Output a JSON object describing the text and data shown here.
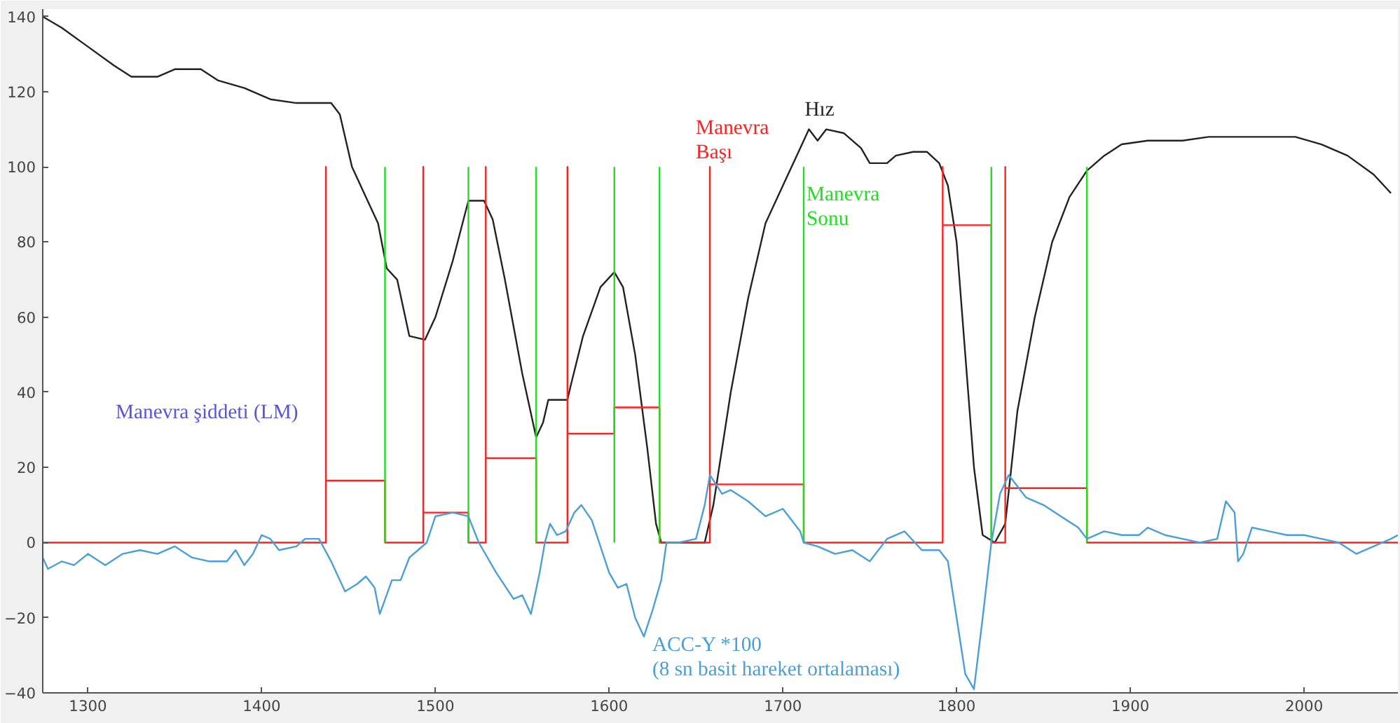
{
  "chart_data": {
    "type": "line",
    "xlim": [
      1274,
      2054
    ],
    "ylim": [
      -40,
      142
    ],
    "xticks": [
      1300,
      1400,
      1500,
      1600,
      1700,
      1800,
      1900,
      2000
    ],
    "yticks": [
      -40,
      -20,
      0,
      20,
      40,
      60,
      80,
      100,
      120,
      140
    ],
    "grid": false,
    "series": [
      {
        "color": "#222222",
        "x": [
          1274,
          1285,
          1300,
          1315,
          1325,
          1340,
          1350,
          1365,
          1375,
          1390,
          1405,
          1420,
          1440,
          1445,
          1452,
          1460,
          1467,
          1472,
          1478,
          1485,
          1494,
          1500,
          1510,
          1519,
          1528,
          1533,
          1540,
          1550,
          1558,
          1562,
          1565,
          1576,
          1578,
          1585,
          1595,
          1603,
          1608,
          1615,
          1622,
          1627,
          1630,
          1655,
          1660,
          1670,
          1680,
          1690,
          1700,
          1710,
          1715,
          1720,
          1725,
          1735,
          1745,
          1750,
          1760,
          1765,
          1775,
          1783,
          1790,
          1795,
          1800,
          1805,
          1810,
          1815,
          1822,
          1828,
          1835,
          1845,
          1855,
          1865,
          1875,
          1885,
          1895,
          1910,
          1930,
          1945,
          1960,
          1980,
          1995,
          2010,
          2025,
          2040,
          2050
        ],
        "values": [
          140,
          137,
          132,
          127,
          124,
          124,
          126,
          126,
          123,
          121,
          118,
          117,
          117,
          114,
          100,
          92,
          85,
          73,
          70,
          55,
          54,
          60,
          75,
          91,
          91,
          86,
          70,
          45,
          28,
          32,
          38,
          38,
          42,
          55,
          68,
          72,
          68,
          50,
          25,
          5,
          0,
          0,
          10,
          40,
          65,
          85,
          95,
          105,
          110,
          107,
          110,
          109,
          105,
          101,
          101,
          103,
          104,
          104,
          101,
          95,
          80,
          50,
          20,
          2,
          0,
          5,
          35,
          60,
          80,
          92,
          99,
          103,
          106,
          107,
          107,
          108,
          108,
          108,
          108,
          106,
          103,
          98,
          93
        ]
      },
      {
        "color": "#ff2020",
        "x": [
          1274,
          1437,
          1437,
          1437,
          1471,
          1471,
          1493,
          1493,
          1493,
          1519,
          1519,
          1529,
          1529,
          1529,
          1558,
          1558,
          1576,
          1576,
          1576,
          1603,
          1603,
          1629,
          1629,
          1658,
          1658,
          1658,
          1712,
          1712,
          1792,
          1792,
          1792,
          1820,
          1820,
          1828,
          1828,
          1828,
          1875,
          1875,
          2054
        ],
        "values": [
          0,
          0,
          100,
          16.5,
          16.5,
          0,
          0,
          100,
          8,
          8,
          0,
          0,
          100,
          22.5,
          22.5,
          0,
          0,
          100,
          29,
          29,
          36,
          36,
          0,
          0,
          100,
          15.5,
          15.5,
          0,
          0,
          100,
          84.5,
          84.5,
          0,
          0,
          100,
          14.5,
          14.5,
          0,
          0
        ]
      },
      {
        "color": "#22dd22",
        "x": [
          1471,
          1471
        ],
        "values": [
          0,
          100
        ]
      },
      {
        "color": "#22dd22",
        "x": [
          1519,
          1519
        ],
        "values": [
          0,
          100
        ]
      },
      {
        "color": "#22dd22",
        "x": [
          1558,
          1558
        ],
        "values": [
          0,
          100
        ]
      },
      {
        "color": "#22dd22",
        "x": [
          1603,
          1603
        ],
        "values": [
          0,
          100
        ]
      },
      {
        "color": "#22dd22",
        "x": [
          1629,
          1629
        ],
        "values": [
          0,
          100
        ]
      },
      {
        "color": "#22dd22",
        "x": [
          1712,
          1712
        ],
        "values": [
          0,
          100
        ]
      },
      {
        "color": "#22dd22",
        "x": [
          1820,
          1820
        ],
        "values": [
          0,
          100
        ]
      },
      {
        "color": "#22dd22",
        "x": [
          1875,
          1875
        ],
        "values": [
          0,
          100
        ]
      },
      {
        "color": "#4a9fd8",
        "x": [
          1274,
          1277,
          1285,
          1292,
          1300,
          1310,
          1320,
          1330,
          1340,
          1350,
          1360,
          1370,
          1380,
          1385,
          1390,
          1395,
          1400,
          1405,
          1410,
          1420,
          1425,
          1433,
          1440,
          1448,
          1455,
          1460,
          1465,
          1468,
          1475,
          1480,
          1485,
          1490,
          1495,
          1500,
          1510,
          1519,
          1525,
          1535,
          1545,
          1550,
          1555,
          1560,
          1563,
          1566,
          1570,
          1575,
          1580,
          1584,
          1590,
          1595,
          1600,
          1605,
          1610,
          1615,
          1620,
          1625,
          1630,
          1633,
          1640,
          1650,
          1655,
          1658,
          1665,
          1670,
          1680,
          1690,
          1700,
          1710,
          1712,
          1720,
          1730,
          1740,
          1750,
          1760,
          1770,
          1780,
          1790,
          1795,
          1800,
          1805,
          1810,
          1815,
          1820,
          1825,
          1830,
          1840,
          1850,
          1860,
          1870,
          1875,
          1885,
          1895,
          1905,
          1910,
          1920,
          1930,
          1940,
          1950,
          1955,
          1960,
          1962,
          1965,
          1970,
          1980,
          1990,
          2000,
          2010,
          2020,
          2030,
          2040,
          2050,
          2054
        ],
        "values": [
          -4,
          -7,
          -5,
          -6,
          -3,
          -6,
          -3,
          -2,
          -3,
          -1,
          -4,
          -5,
          -5,
          -2,
          -6,
          -3,
          2,
          1,
          -2,
          -1,
          1,
          1,
          -5,
          -13,
          -11,
          -9,
          -12,
          -19,
          -10,
          -10,
          -4,
          -2,
          0,
          7,
          8,
          7,
          0,
          -8,
          -15,
          -14,
          -19,
          -8,
          0,
          5,
          2,
          3,
          8,
          10,
          6,
          -1,
          -8,
          -12,
          -11,
          -20,
          -25,
          -18,
          -10,
          0,
          0,
          1,
          10,
          18,
          13,
          14,
          11,
          7,
          9,
          3,
          0,
          -1,
          -3,
          -2,
          -5,
          1,
          3,
          -2,
          -2,
          -5,
          -20,
          -35,
          -39,
          -20,
          0,
          13,
          18,
          12,
          10,
          7,
          4,
          1,
          3,
          2,
          2,
          4,
          2,
          1,
          0,
          1,
          11,
          8,
          -5,
          -3,
          4,
          3,
          2,
          2,
          1,
          0,
          -3,
          -1,
          1,
          2
        ]
      }
    ],
    "annotations": [
      {
        "text": "Hız",
        "x": 1715,
        "y": 110
      },
      {
        "text": "Manevra\nBaşı",
        "x": 1658,
        "y": 100
      },
      {
        "text": "Manevra\nSonu",
        "x": 1712,
        "y": 100
      },
      {
        "text": "ACC-Y *100\n(8 sn basit hareket ortalaması)",
        "x": 1620,
        "y": -25
      },
      "Manevra şiddeti (LM)"
    ]
  }
}
